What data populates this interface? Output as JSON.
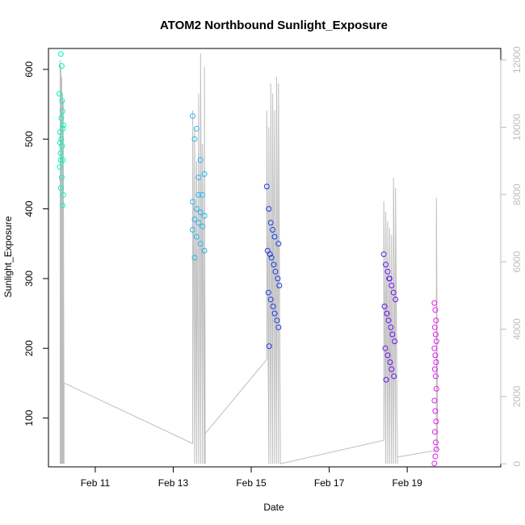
{
  "chart_data": {
    "type": "scatter",
    "title": "ATOM2 Northbound Sunlight_Exposure",
    "xlabel": "Date",
    "ylabel": "Sunlight_Exposure",
    "xlim": [
      9.8,
      21.4
    ],
    "ylim": [
      30,
      630
    ],
    "y2lim": [
      -90,
      12340
    ],
    "x_ticks": [
      {
        "value": 11,
        "label": "Feb 11"
      },
      {
        "value": 13,
        "label": "Feb 13"
      },
      {
        "value": 15,
        "label": "Feb 15"
      },
      {
        "value": 17,
        "label": "Feb 17"
      },
      {
        "value": 19,
        "label": "Feb 19"
      }
    ],
    "y_ticks": [
      100,
      200,
      300,
      400,
      500,
      600
    ],
    "y2_ticks": [
      0,
      2000,
      4000,
      6000,
      8000,
      10000,
      12000
    ],
    "y2_color": "#bdbdbd",
    "grid": false,
    "series": [
      {
        "color": "#00f5c0",
        "x": [
          10.12,
          10.14,
          10.08,
          10.16,
          10.18,
          10.1,
          10.13,
          10.15,
          10.11,
          10.17,
          10.09,
          10.14,
          10.12,
          10.16,
          10.18,
          10.1,
          10.13,
          10.15,
          10.11,
          10.17
        ],
        "y": [
          622,
          605,
          565,
          540,
          520,
          510,
          500,
          490,
          480,
          470,
          460,
          445,
          430,
          405,
          420,
          495,
          530,
          555,
          470,
          515
        ]
      },
      {
        "color": "#26b8ee",
        "x": [
          13.5,
          13.6,
          13.55,
          13.7,
          13.8,
          13.65,
          13.75,
          13.5,
          13.6,
          13.7,
          13.8,
          13.55,
          13.65,
          13.75,
          13.5,
          13.6,
          13.7,
          13.8,
          13.55,
          13.65
        ],
        "y": [
          533,
          515,
          500,
          470,
          450,
          445,
          420,
          410,
          400,
          395,
          390,
          385,
          380,
          375,
          370,
          360,
          350,
          340,
          330,
          420
        ]
      },
      {
        "color": "#1b3ae6",
        "x": [
          15.4,
          15.45,
          15.5,
          15.55,
          15.6,
          15.7,
          15.42,
          15.48,
          15.52,
          15.58,
          15.62,
          15.68,
          15.72,
          15.44,
          15.5,
          15.56,
          15.6,
          15.66,
          15.7,
          15.46
        ],
        "y": [
          432,
          400,
          380,
          370,
          360,
          350,
          340,
          335,
          330,
          320,
          310,
          300,
          290,
          280,
          270,
          260,
          250,
          240,
          230,
          203
        ]
      },
      {
        "color": "#6a12f0",
        "x": [
          18.4,
          18.45,
          18.5,
          18.55,
          18.6,
          18.65,
          18.7,
          18.42,
          18.48,
          18.52,
          18.58,
          18.62,
          18.68,
          18.44,
          18.5,
          18.56,
          18.6,
          18.66,
          18.46,
          18.54
        ],
        "y": [
          335,
          320,
          310,
          300,
          290,
          280,
          270,
          260,
          250,
          240,
          230,
          220,
          210,
          200,
          190,
          180,
          170,
          160,
          155,
          300
        ]
      },
      {
        "color": "#e21cf2",
        "x": [
          19.7,
          19.72,
          19.74,
          19.71,
          19.73,
          19.75,
          19.7,
          19.72,
          19.74,
          19.71,
          19.73,
          19.75,
          19.7,
          19.72,
          19.74,
          19.71,
          19.73,
          19.75,
          19.72,
          19.7
        ],
        "y": [
          265,
          255,
          240,
          230,
          220,
          210,
          200,
          190,
          180,
          170,
          160,
          142,
          125,
          110,
          95,
          80,
          65,
          55,
          45,
          35
        ]
      }
    ],
    "secondary_line": {
      "color": "#bdbdbd",
      "x": [
        10.1,
        10.1,
        10.12,
        10.12,
        10.14,
        10.14,
        10.16,
        10.16,
        10.18,
        10.18,
        10.2,
        10.2,
        13.5,
        13.5,
        13.55,
        13.55,
        13.6,
        13.6,
        13.65,
        13.65,
        13.7,
        13.7,
        13.75,
        13.75,
        13.8,
        13.8,
        13.82,
        13.82,
        15.4,
        15.4,
        15.45,
        15.45,
        15.5,
        15.5,
        15.55,
        15.55,
        15.6,
        15.6,
        15.65,
        15.65,
        15.7,
        15.7,
        15.75,
        15.75,
        18.4,
        18.4,
        18.45,
        18.45,
        18.5,
        18.5,
        18.55,
        18.55,
        18.6,
        18.6,
        18.65,
        18.65,
        18.7,
        18.7,
        18.75,
        18.75,
        19.75,
        19.75,
        19.78
      ],
      "y": [
        0,
        12000,
        0,
        11800,
        0,
        11500,
        0,
        11000,
        0,
        10800,
        0,
        2400,
        600,
        10500,
        0,
        10000,
        0,
        9000,
        0,
        11000,
        0,
        12200,
        0,
        9500,
        0,
        11800,
        0,
        900,
        3100,
        10500,
        0,
        10000,
        0,
        11300,
        0,
        11000,
        0,
        10500,
        0,
        11500,
        0,
        11300,
        0,
        0,
        700,
        7800,
        0,
        7500,
        0,
        7200,
        0,
        7000,
        0,
        6800,
        0,
        8500,
        0,
        8200,
        0,
        200,
        400,
        7900,
        400
      ]
    }
  }
}
